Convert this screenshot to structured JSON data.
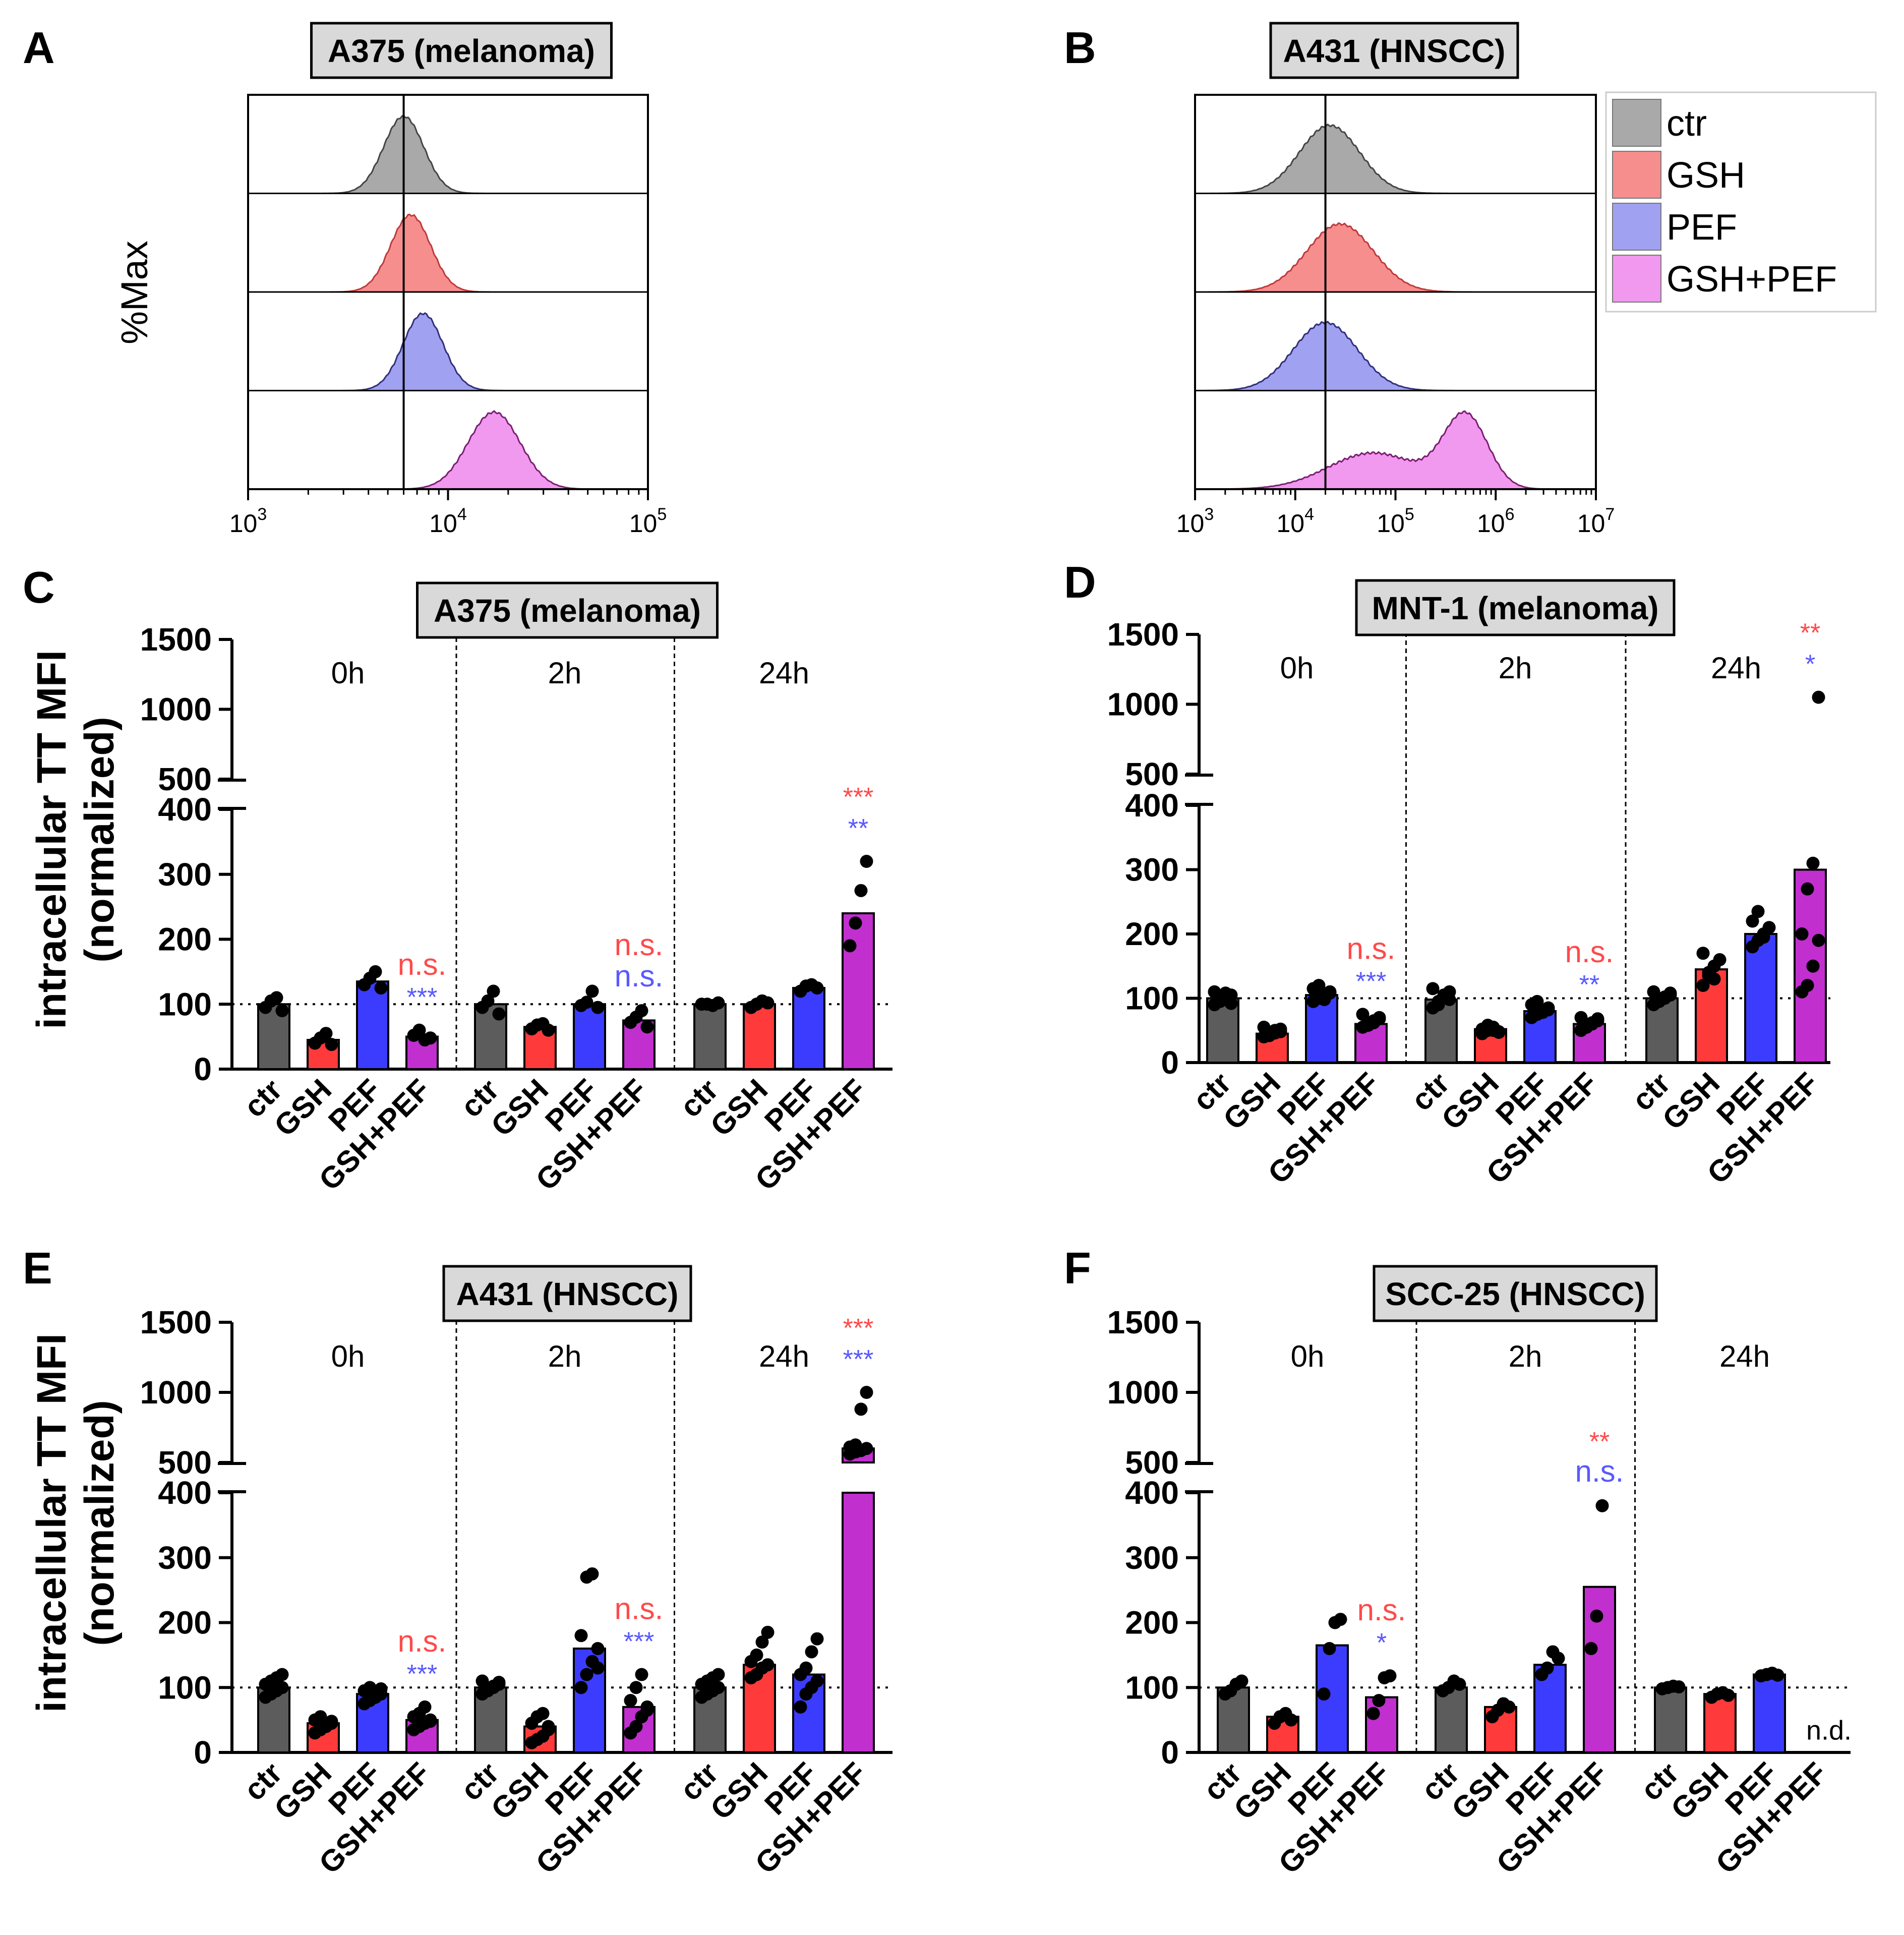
{
  "figure": {
    "panel_letters": [
      "A",
      "B",
      "C",
      "D",
      "E",
      "F"
    ],
    "y_axis_label_line1": "intracellular TT MFI",
    "y_axis_label_line2": "(normalized)",
    "hist_y_label": "%Max",
    "groups": [
      "ctr",
      "GSH",
      "PEF",
      "GSH+PEF"
    ],
    "timepoints": [
      "0h",
      "2h",
      "24h"
    ],
    "nd_label": "n.d."
  },
  "colors": {
    "ctr": "#5c5c5c",
    "GSH": "#ff3a3a",
    "PEF": "#3c3cff",
    "GSH+PEF": "#c12fcf",
    "hist_ctr": "#a9a9a9",
    "hist_GSH": "#f68e8e",
    "hist_PEF": "#a1a1f2",
    "hist_GSHPEF": "#f198ef",
    "line_ctr": "#444444",
    "line_GSH": "#c0393b",
    "line_PEF": "#30307a",
    "line_GSHPEF": "#7a1f73",
    "sig_red": "#ff4a4a",
    "sig_blue": "#5959ff",
    "title_box": "#d9d9d9"
  },
  "chart_data": [
    {
      "panel": "A",
      "type": "histogram",
      "title": "A375 (melanoma)",
      "ylabel": "%Max",
      "xscale": "log10",
      "xlim": [
        1000,
        100000
      ],
      "xticks": [
        {
          "base": "10",
          "exp": "3"
        },
        {
          "base": "10",
          "exp": "4"
        },
        {
          "base": "10",
          "exp": "5"
        }
      ],
      "reference_line_x": 6000,
      "series": [
        {
          "name": "ctr",
          "peaks": [
            {
              "center": 6000,
              "sigma_log": 0.1,
              "height": 0.85
            }
          ]
        },
        {
          "name": "GSH",
          "peaks": [
            {
              "center": 6500,
              "sigma_log": 0.1,
              "height": 0.85
            }
          ]
        },
        {
          "name": "PEF",
          "peaks": [
            {
              "center": 7500,
              "sigma_log": 0.1,
              "height": 0.85
            }
          ]
        },
        {
          "name": "GSH+PEF",
          "peaks": [
            {
              "center": 17000,
              "sigma_log": 0.13,
              "height": 0.85
            }
          ]
        }
      ]
    },
    {
      "panel": "B",
      "type": "histogram",
      "title": "A431 (HNSCC)",
      "ylabel": "%Max",
      "xscale": "log10",
      "xlim": [
        1000,
        10000000
      ],
      "xticks": [
        {
          "base": "10",
          "exp": "3"
        },
        {
          "base": "10",
          "exp": "4"
        },
        {
          "base": "10",
          "exp": "5"
        },
        {
          "base": "10",
          "exp": "6"
        },
        {
          "base": "10",
          "exp": "7"
        }
      ],
      "reference_line_x": 20000,
      "legend": [
        "ctr",
        "GSH",
        "PEF",
        "GSH+PEF"
      ],
      "series": [
        {
          "name": "ctr",
          "peaks": [
            {
              "center": 22000,
              "sigma_log": 0.3,
              "height": 0.75
            }
          ]
        },
        {
          "name": "GSH",
          "peaks": [
            {
              "center": 28000,
              "sigma_log": 0.33,
              "height": 0.75
            }
          ]
        },
        {
          "name": "PEF",
          "peaks": [
            {
              "center": 20000,
              "sigma_log": 0.32,
              "height": 0.75
            }
          ]
        },
        {
          "name": "GSH+PEF",
          "peaks": [
            {
              "center": 60000,
              "sigma_log": 0.45,
              "height": 0.4
            },
            {
              "center": 500000,
              "sigma_log": 0.22,
              "height": 0.8
            }
          ]
        }
      ]
    },
    {
      "panel": "C",
      "type": "bar",
      "title": "A375 (melanoma)",
      "ylabel": "intracellular TT MFI (normalized)",
      "yticks_lower": [
        0,
        100,
        200,
        300,
        400
      ],
      "yticks_upper": [
        500,
        1000,
        1500
      ],
      "timepoints": [
        "0h",
        "2h",
        "24h"
      ],
      "categories": [
        "ctr",
        "GSH",
        "PEF",
        "GSH+PEF"
      ],
      "reference_y": 100,
      "bars": [
        [
          100,
          45,
          135,
          50
        ],
        [
          100,
          65,
          100,
          75
        ],
        [
          100,
          100,
          125,
          240
        ]
      ],
      "points": [
        [
          [
            95,
            105,
            110,
            90
          ],
          [
            40,
            48,
            55,
            38
          ],
          [
            130,
            140,
            150,
            125
          ],
          [
            52,
            60,
            45,
            48
          ]
        ],
        [
          [
            95,
            105,
            120,
            85
          ],
          [
            62,
            68,
            70,
            60
          ],
          [
            98,
            103,
            120,
            95
          ],
          [
            72,
            80,
            90,
            65
          ]
        ],
        [
          [
            100,
            100,
            98,
            102
          ],
          [
            95,
            100,
            105,
            102
          ],
          [
            120,
            128,
            130,
            125
          ],
          [
            190,
            225,
            275,
            320
          ]
        ]
      ],
      "annotations": [
        {
          "time": 0,
          "bar": 3,
          "red": "n.s.",
          "blue": "***"
        },
        {
          "time": 1,
          "bar": 3,
          "red": "n.s.",
          "blue": "n.s."
        },
        {
          "time": 2,
          "bar": 3,
          "red": "***",
          "blue": "**"
        }
      ]
    },
    {
      "panel": "D",
      "type": "bar",
      "title": "MNT-1 (melanoma)",
      "ylabel": "intracellular TT MFI (normalized)",
      "yticks_lower": [
        0,
        100,
        200,
        300,
        400
      ],
      "yticks_upper": [
        500,
        1000,
        1500
      ],
      "timepoints": [
        "0h",
        "2h",
        "24h"
      ],
      "categories": [
        "ctr",
        "GSH",
        "PEF",
        "GSH+PEF"
      ],
      "reference_y": 100,
      "bars": [
        [
          100,
          45,
          105,
          60
        ],
        [
          98,
          52,
          80,
          60
        ],
        [
          100,
          145,
          200,
          300
        ]
      ],
      "points": [
        [
          [
            90,
            95,
            100,
            105,
            110,
            98,
            108,
            92
          ],
          [
            40,
            45,
            50,
            48,
            55,
            42,
            46,
            52
          ],
          [
            95,
            100,
            105,
            110,
            115,
            120,
            98,
            108
          ],
          [
            55,
            60,
            65,
            70,
            75,
            58,
            62,
            68
          ]
        ],
        [
          [
            85,
            95,
            100,
            110,
            115,
            90,
            105,
            98
          ],
          [
            45,
            50,
            55,
            48,
            52,
            58,
            50,
            47
          ],
          [
            70,
            75,
            80,
            85,
            90,
            95,
            78,
            82
          ],
          [
            50,
            55,
            60,
            65,
            70,
            58,
            62,
            68
          ]
        ],
        [
          [
            90,
            95,
            100,
            105,
            110,
            98,
            102,
            108
          ],
          [
            120,
            135,
            150,
            160,
            170,
            140,
            130
          ],
          [
            180,
            190,
            200,
            210,
            220,
            235,
            195
          ],
          [
            110,
            120,
            150,
            190,
            200,
            270,
            310,
            1050
          ]
        ]
      ],
      "annotations": [
        {
          "time": 0,
          "bar": 3,
          "red": "n.s.",
          "blue": "***"
        },
        {
          "time": 1,
          "bar": 3,
          "red": "n.s.",
          "blue": "**"
        },
        {
          "time": 2,
          "bar": 3,
          "red": "**",
          "blue": "*"
        }
      ]
    },
    {
      "panel": "E",
      "type": "bar",
      "title": "A431 (HNSCC)",
      "ylabel": "intracellular TT MFI (normalized)",
      "yticks_lower": [
        0,
        100,
        200,
        300,
        400
      ],
      "yticks_upper": [
        500,
        1000,
        1500
      ],
      "timepoints": [
        "0h",
        "2h",
        "24h"
      ],
      "categories": [
        "ctr",
        "GSH",
        "PEF",
        "GSH+PEF"
      ],
      "reference_y": 100,
      "bars": [
        [
          100,
          45,
          90,
          50
        ],
        [
          100,
          40,
          160,
          70
        ],
        [
          100,
          135,
          120,
          600
        ]
      ],
      "points": [
        [
          [
            85,
            90,
            95,
            100,
            105,
            110,
            115,
            120
          ],
          [
            30,
            35,
            40,
            45,
            50,
            55,
            42,
            48
          ],
          [
            75,
            80,
            85,
            90,
            95,
            100,
            88,
            98
          ],
          [
            35,
            40,
            45,
            50,
            55,
            60,
            70,
            48
          ]
        ],
        [
          [
            90,
            95,
            100,
            105,
            110,
            98,
            102,
            108
          ],
          [
            15,
            20,
            25,
            35,
            45,
            55,
            60,
            40
          ],
          [
            100,
            120,
            140,
            160,
            180,
            270,
            275,
            130
          ],
          [
            30,
            40,
            55,
            70,
            80,
            100,
            120,
            65
          ]
        ],
        [
          [
            85,
            90,
            95,
            100,
            105,
            110,
            115,
            120
          ],
          [
            115,
            120,
            130,
            135,
            140,
            150,
            170,
            185
          ],
          [
            70,
            90,
            100,
            110,
            120,
            130,
            155,
            175
          ],
          [
            560,
            575,
            585,
            600,
            610,
            625,
            880,
            1000
          ]
        ]
      ],
      "annotations": [
        {
          "time": 0,
          "bar": 3,
          "red": "n.s.",
          "blue": "***"
        },
        {
          "time": 1,
          "bar": 3,
          "red": "n.s.",
          "blue": "***"
        },
        {
          "time": 2,
          "bar": 3,
          "red": "***",
          "blue": "***"
        }
      ]
    },
    {
      "panel": "F",
      "type": "bar",
      "title": "SCC-25 (HNSCC)",
      "ylabel": "intracellular TT MFI (normalized)",
      "yticks_lower": [
        0,
        100,
        200,
        300,
        400
      ],
      "yticks_upper": [
        500,
        1000,
        1500
      ],
      "timepoints": [
        "0h",
        "2h",
        "24h"
      ],
      "categories": [
        "ctr",
        "GSH",
        "PEF",
        "GSH+PEF"
      ],
      "reference_y": 100,
      "bars": [
        [
          100,
          55,
          165,
          85
        ],
        [
          100,
          70,
          135,
          255
        ],
        [
          100,
          90,
          120,
          null
        ]
      ],
      "points": [
        [
          [
            90,
            95,
            105,
            110
          ],
          [
            45,
            55,
            60,
            50
          ],
          [
            90,
            160,
            200,
            205
          ],
          [
            60,
            80,
            115,
            118
          ]
        ],
        [
          [
            95,
            100,
            110,
            105
          ],
          [
            55,
            65,
            75,
            70
          ],
          [
            120,
            130,
            155,
            145
          ],
          [
            160,
            210,
            380
          ]
        ],
        [
          [
            98,
            100,
            102,
            101
          ],
          [
            85,
            90,
            92,
            88
          ],
          [
            118,
            120,
            122,
            119
          ],
          []
        ]
      ],
      "annotations": [
        {
          "time": 0,
          "bar": 3,
          "red": "n.s.",
          "blue": "*"
        },
        {
          "time": 1,
          "bar": 3,
          "red": "**",
          "blue": "n.s."
        }
      ],
      "missing_label": {
        "time": 2,
        "bar": 3,
        "text": "n.d."
      }
    }
  ]
}
